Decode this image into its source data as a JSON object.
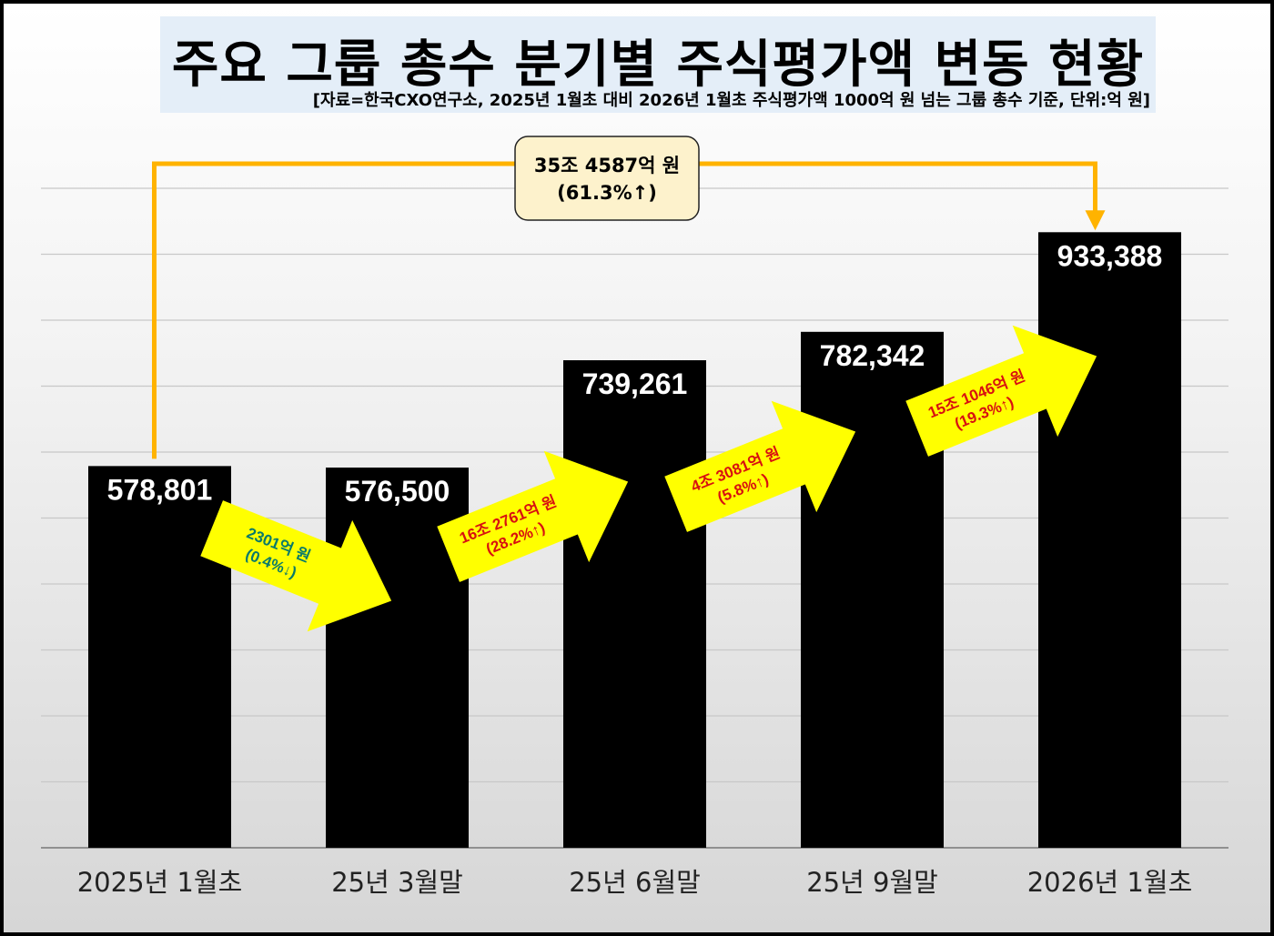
{
  "title": "주요 그룹 총수 분기별 주식평가액 변동 현황",
  "subtitle": "[자료=한국CXO연구소, 2025년 1월초 대비 2026년 1월초 주식평가액 1000억 원 넘는 그룹 총수 기준, 단위:억 원]",
  "chart_data": {
    "type": "bar",
    "categories": [
      "2025년 1월초",
      "25년 3월말",
      "25년 6월말",
      "25년 9월말",
      "2026년 1월초"
    ],
    "values": [
      578801,
      576500,
      739261,
      782342,
      933388
    ],
    "value_labels": [
      "578,801",
      "576,500",
      "739,261",
      "782,342",
      "933,388"
    ],
    "ylim": [
      0,
      1000000
    ],
    "grid": true,
    "bar_color": "#000000",
    "annotations": [
      {
        "line1": "2301억 원",
        "line2": "(0.4%↓)",
        "color": "#0a7a6a"
      },
      {
        "line1": "16조 2761억 원",
        "line2": "(28.2%↑)",
        "color": "#d81010"
      },
      {
        "line1": "4조 3081억 원",
        "line2": "(5.8%↑)",
        "color": "#d81010"
      },
      {
        "line1": "15조 1046억 원",
        "line2": "(19.3%↑)",
        "color": "#d81010"
      }
    ],
    "total_change": {
      "line1": "35조 4587억 원",
      "line2": "(61.3%↑)"
    },
    "arrow_color": "#ffff00",
    "bracket_color": "#ffb300"
  }
}
